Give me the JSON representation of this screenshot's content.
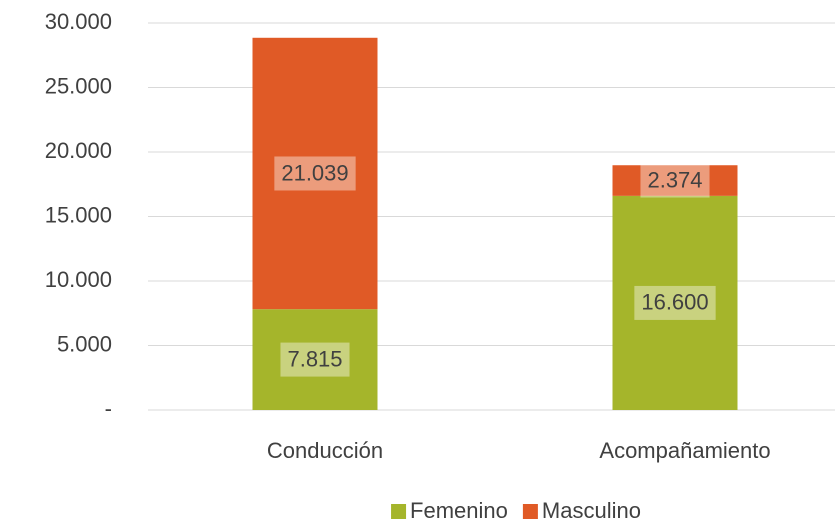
{
  "chart_data": {
    "type": "bar",
    "stacked": true,
    "categories": [
      "Conducción",
      "Acompañamiento"
    ],
    "series": [
      {
        "name": "Femenino",
        "color": "#a5b52b",
        "values": [
          7815,
          16600
        ],
        "value_labels": [
          "7.815",
          "16.600"
        ]
      },
      {
        "name": "Masculino",
        "color": "#e05a26",
        "values": [
          21039,
          2374
        ],
        "value_labels": [
          "21.039",
          "2.374"
        ]
      }
    ],
    "ylim": [
      0,
      30000
    ],
    "yticks": [
      {
        "value": 0,
        "label": "-"
      },
      {
        "value": 5000,
        "label": "5.000"
      },
      {
        "value": 10000,
        "label": "10.000"
      },
      {
        "value": 15000,
        "label": "15.000"
      },
      {
        "value": 20000,
        "label": "20.000"
      },
      {
        "value": 25000,
        "label": "25.000"
      },
      {
        "value": 30000,
        "label": "30.000"
      }
    ],
    "grid": true,
    "legend": "bottom"
  }
}
